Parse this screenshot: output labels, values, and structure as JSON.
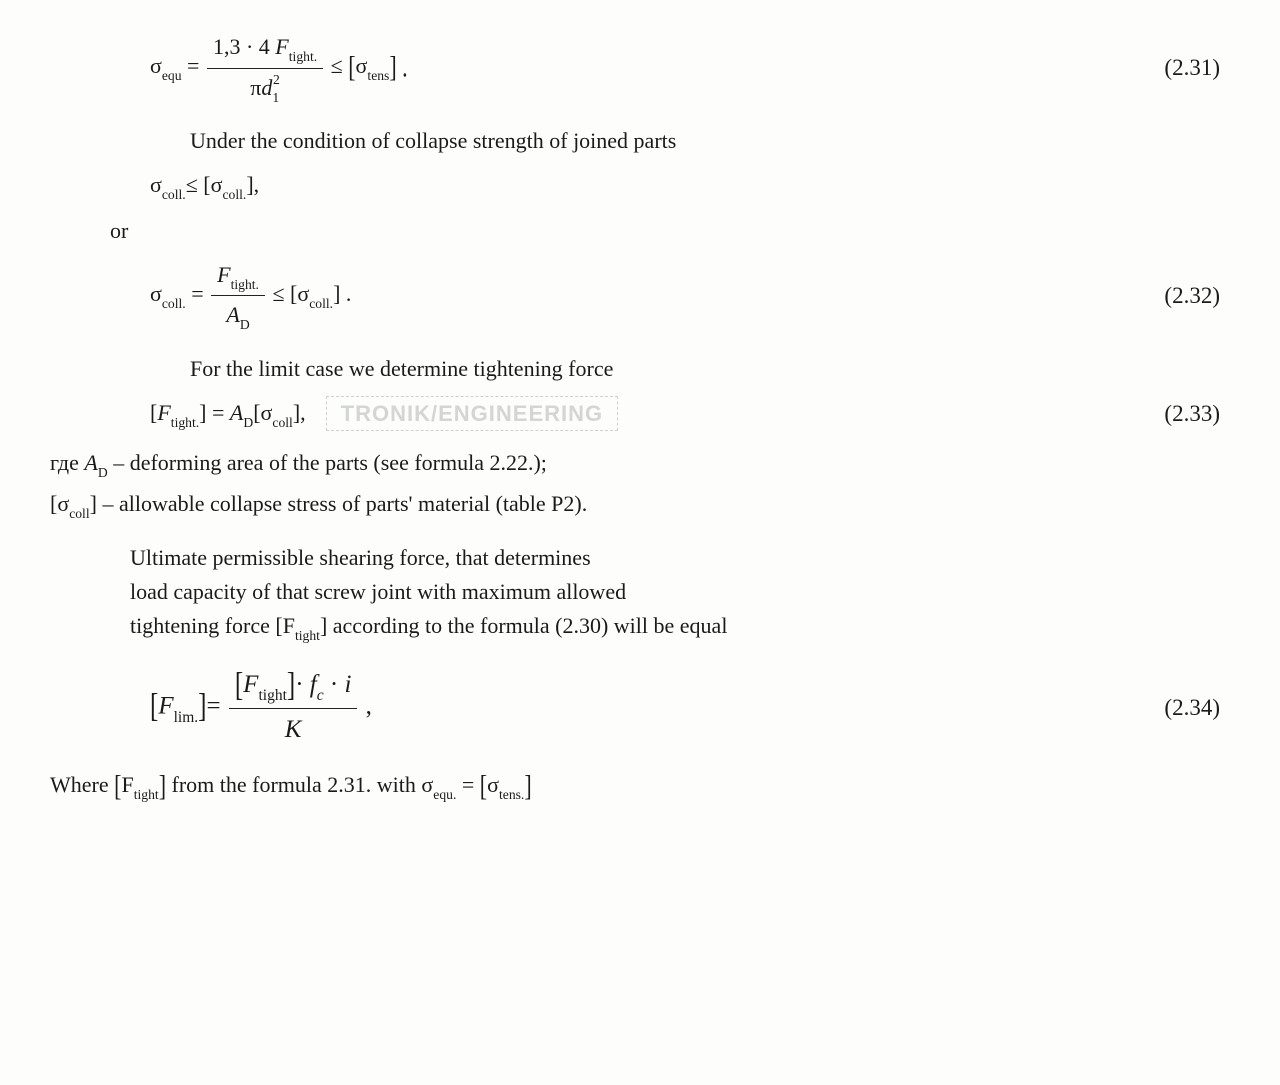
{
  "eq231": {
    "lhs_symbol": "σ",
    "lhs_sub": "equ",
    "eq": " = ",
    "num_coeff": "1,3 · 4 ",
    "num_F": "F",
    "num_F_sub": "tight.",
    "den_pi": "π",
    "den_d": "d",
    "den_d_sub": "1",
    "den_d_sup": "2",
    "rel": " ≤ ",
    "rhs_open": "[",
    "rhs_sigma": "σ",
    "rhs_sigma_sub": "tens",
    "rhs_close": "] .",
    "number": "(2.31)"
  },
  "text1": "Under the condition of collapse strength of joined parts",
  "ineq_coll": {
    "sigma": "σ",
    "sub": "coll.",
    "rel": "≤ ",
    "open": "[",
    "sigma2": "σ",
    "sub2": "coll.",
    "close": "],"
  },
  "or_text": "or",
  "eq232": {
    "lhs_sigma": "σ",
    "lhs_sub": "coll.",
    "eq": " = ",
    "num_F": "F",
    "num_F_sub": "tight.",
    "den_A": "A",
    "den_A_sub": "D",
    "rel": " ≤ ",
    "open": "[",
    "sigma": "σ",
    "sigma_sub": "coll.",
    "close": "] .",
    "number": "(2.32)"
  },
  "text2": "For the limit case we determine tightening force",
  "eq233": {
    "open1": "[",
    "F": "F",
    "F_sub": "tight.",
    "close1": "]",
    "eq": " = ",
    "A": "A",
    "A_sub": "D",
    "open2": "[",
    "sigma": "σ",
    "sigma_sub": "coll",
    "close2": "],",
    "number": "(2.33)"
  },
  "watermark": "TRONIK/ENGINEERING",
  "def1": {
    "prefix": "где ",
    "A": "A",
    "A_sub": "D",
    "dash": " –   ",
    "text": "deforming area of the parts (see formula 2.22.);"
  },
  "def2": {
    "open": "[",
    "sigma": "σ",
    "sigma_sub": "coll",
    "close": "]",
    "dash": " –   ",
    "text": "allowable collapse stress of parts' material (table P2)."
  },
  "para": {
    "l1": "Ultimate permissible shearing force, that determines",
    "l2": "load capacity of that screw joint with maximum allowed",
    "l3_a": "tightening force [F",
    "l3_sub": "tight",
    "l3_b": "] according to the formula (2.30) will be equal"
  },
  "eq234": {
    "open": "[",
    "F": "F",
    "F_sub": "lim.",
    "close": "]",
    "eq": "= ",
    "num_open": "[",
    "num_F": "F",
    "num_F_sub": "tight",
    "num_close": "]",
    "dot1": "· ",
    "fc": "f",
    "fc_sub": "c",
    "dot2": " · ",
    "i": "i",
    "den_K": "K",
    "tail": " ,",
    "number": "(2.34)"
  },
  "where": {
    "prefix": "Where ",
    "open": "[",
    "F": "F",
    "F_sub": "tight",
    "close": "]",
    "mid": "  from the formula 2.31. with   ",
    "sigma": "σ",
    "sigma_sub": "equ.",
    "eq": " = ",
    "open2": "[",
    "sigma2": "σ",
    "sigma2_sub": "tens.",
    "close2": "]"
  }
}
